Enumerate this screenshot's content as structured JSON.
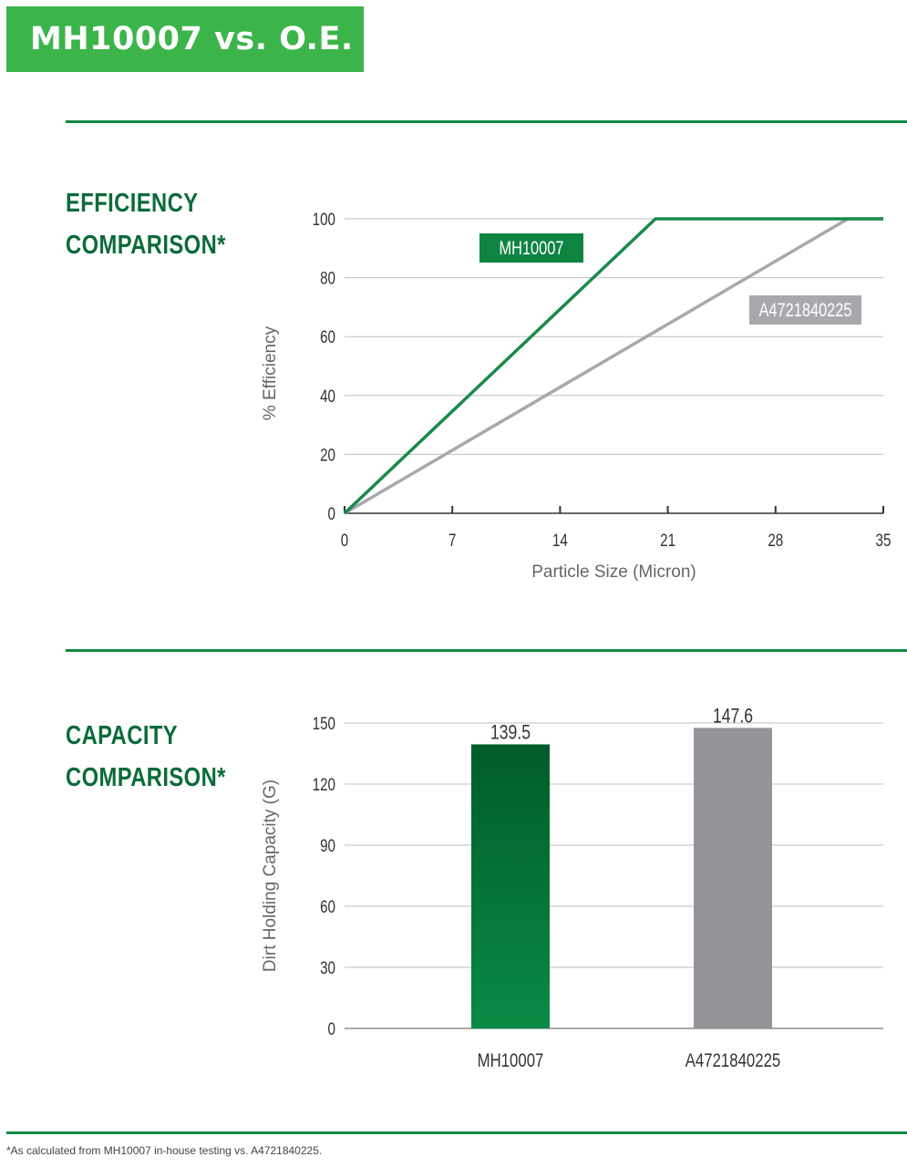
{
  "header": {
    "title": "MH10007 vs. O.E."
  },
  "sections": {
    "efficiency": {
      "title_line1": "EFFICIENCY",
      "title_line2": "COMPARISON*"
    },
    "capacity": {
      "title_line1": "CAPACITY",
      "title_line2": "COMPARISON*"
    }
  },
  "footnote": "*As calculated from MH10007 in-house testing vs. A4721840225.",
  "colors": {
    "brand_green": "#3bb54a",
    "dark_green": "#0b6b3a",
    "line_green": "#1a8a4a",
    "gray": "#a7a9ac",
    "bar_gray": "#939598"
  },
  "chart_data": [
    {
      "type": "line",
      "xlabel": "Particle Size (Micron)",
      "ylabel": "% Efficiency",
      "xlim": [
        0,
        35
      ],
      "ylim": [
        0,
        100
      ],
      "x_ticks": [
        "0",
        "7",
        "14",
        "21",
        "28",
        "35"
      ],
      "y_ticks": [
        "0",
        "20",
        "40",
        "60",
        "80",
        "100"
      ],
      "grid": true,
      "series": [
        {
          "name": "MH10007",
          "color": "#1a8a4a",
          "points": [
            [
              0,
              0
            ],
            [
              20.2,
              100
            ],
            [
              35,
              100
            ]
          ]
        },
        {
          "name": "A4721840225",
          "color": "#a7a9ac",
          "points": [
            [
              0,
              0
            ],
            [
              32.7,
              100
            ],
            [
              35,
              100
            ]
          ]
        }
      ]
    },
    {
      "type": "bar",
      "ylabel": "Dirt Holding Capacity (G)",
      "ylim": [
        0,
        150
      ],
      "y_ticks": [
        "0",
        "30",
        "60",
        "90",
        "120",
        "150"
      ],
      "grid": true,
      "categories": [
        "MH10007",
        "A4721840225"
      ],
      "values": [
        139.5,
        147.6
      ],
      "value_labels": [
        "139.5",
        "147.6"
      ],
      "colors": [
        "#0a7a3e",
        "#939598"
      ]
    }
  ]
}
